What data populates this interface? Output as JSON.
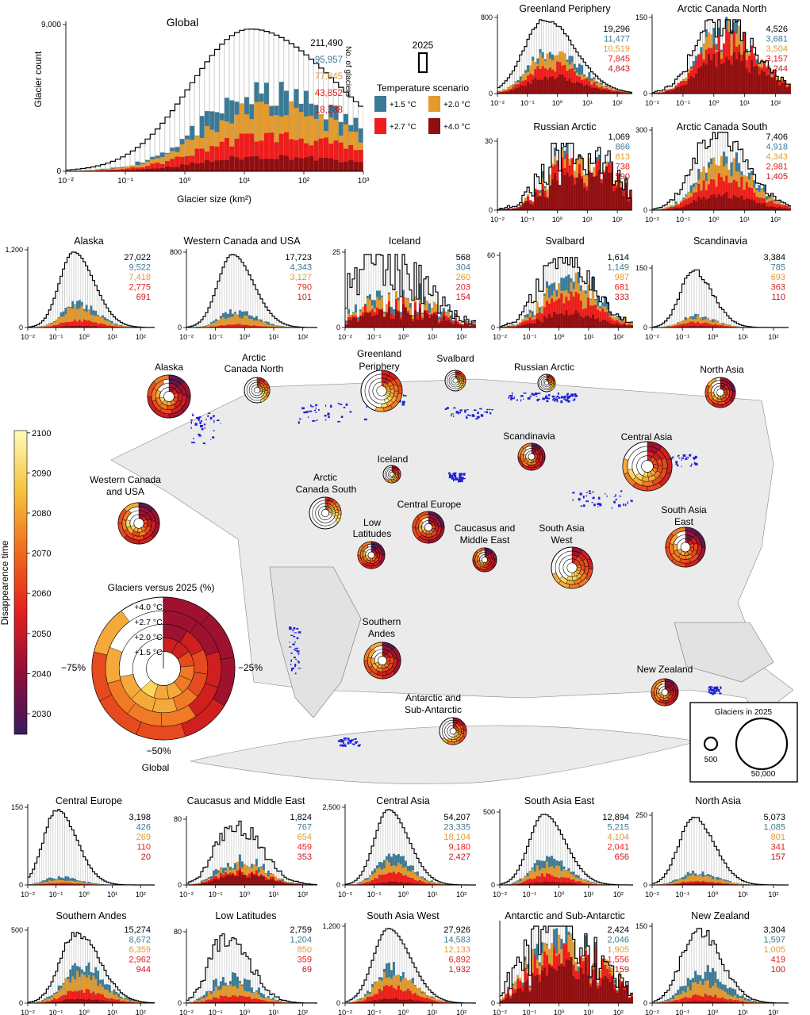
{
  "colors": {
    "total": "#000000",
    "s15": "#3b7a96",
    "s20": "#e39a2f",
    "s27": "#ee1c1c",
    "s40": "#8e0f12",
    "land": "#ebebeb",
    "glacier": "#1f1fd9"
  },
  "legend": {
    "year": "2025",
    "scenario_title": "Temperature scenario",
    "s15": "+1.5 °C",
    "s20": "+2.0 °C",
    "s27": "+2.7 °C",
    "s40": "+4.0 °C"
  },
  "colorbar": {
    "label": "Disappearence time",
    "ticks": [
      "2030",
      "2040",
      "2050",
      "2060",
      "2070",
      "2080",
      "2090",
      "2100"
    ]
  },
  "pie_legend": {
    "title": "Glaciers versus 2025 (%)",
    "rings": [
      "+4.0 °C",
      "+2.7 °C",
      "+2.0 °C",
      "+1.5 °C"
    ],
    "left": "−75%",
    "right": "−25%",
    "bottom": "−50%",
    "name": "Global"
  },
  "size_legend": {
    "title": "Glaciers in 2025",
    "small": "500",
    "large": "50,000"
  },
  "map_labels": [
    "Alaska",
    "Arctic",
    "Canada North",
    "Greenland",
    "Periphery",
    "Svalbard",
    "Russian Arctic",
    "North Asia",
    "Scandinavia",
    "Central Asia",
    "Iceland",
    "Arctic",
    "Canada South",
    "Western Canada",
    "and USA",
    "Central Europe",
    "Low",
    "Latitudes",
    "Caucasus and",
    "Middle East",
    "South Asia",
    "West",
    "South Asia",
    "East",
    "Southern",
    "Andes",
    "New Zealand",
    "Antarctic and",
    "Sub-Antarctic"
  ],
  "chart_data": [
    {
      "type": "bar",
      "title": "Global",
      "xlabel": "Glacier size (km²)",
      "ylabel": "Glacier count",
      "xscale": "log",
      "xlim": [
        "10⁻²",
        "10³"
      ],
      "x_ticks": [
        "10⁻²",
        "10⁻¹",
        "10⁰",
        "10¹",
        "10²",
        "10³"
      ],
      "y_ticks": [
        "0",
        "9,000"
      ],
      "count_label": "No. of glaciers",
      "counts": [
        "211,490",
        "95,957",
        "77,845",
        "43,852",
        "18,288"
      ]
    },
    {
      "type": "bar",
      "title": "Greenland Periphery",
      "xscale": "log",
      "x_ticks": [
        "10⁻²",
        "10⁻¹",
        "10⁰",
        "10¹",
        "10²"
      ],
      "y_ticks": [
        "0",
        "800"
      ],
      "counts": [
        "19,296",
        "11,477",
        "10,519",
        "7,845",
        "4,843"
      ]
    },
    {
      "type": "bar",
      "title": "Arctic Canada North",
      "xscale": "log",
      "x_ticks": [
        "10⁻²",
        "10⁻¹",
        "10⁰",
        "10¹",
        "10²"
      ],
      "y_ticks": [
        "0",
        "150"
      ],
      "counts": [
        "4,526",
        "3,681",
        "3,504",
        "3,157",
        "2,244"
      ]
    },
    {
      "type": "bar",
      "title": "Russian Arctic",
      "xscale": "log",
      "x_ticks": [
        "10⁻²",
        "10⁻¹",
        "10⁰",
        "10¹",
        "10²"
      ],
      "y_ticks": [
        "0",
        "30"
      ],
      "counts": [
        "1,069",
        "866",
        "813",
        "738",
        "590"
      ]
    },
    {
      "type": "bar",
      "title": "Arctic Canada South",
      "xscale": "log",
      "x_ticks": [
        "10⁻²",
        "10⁻¹",
        "10⁰",
        "10¹",
        "10²"
      ],
      "y_ticks": [
        "0",
        "300"
      ],
      "counts": [
        "7,406",
        "4,918",
        "4,343",
        "2,981",
        "1,405"
      ]
    },
    {
      "type": "bar",
      "title": "Alaska",
      "xscale": "log",
      "x_ticks": [
        "10⁻²",
        "10⁻¹",
        "10⁰",
        "10¹",
        "10²"
      ],
      "y_ticks": [
        "0",
        "1,200"
      ],
      "counts": [
        "27,022",
        "9,522",
        "7,418",
        "2,775",
        "691"
      ]
    },
    {
      "type": "bar",
      "title": "Western Canada and USA",
      "xscale": "log",
      "x_ticks": [
        "10⁻²",
        "10⁻¹",
        "10⁰",
        "10¹",
        "10²"
      ],
      "y_ticks": [
        "0",
        "800"
      ],
      "counts": [
        "17,723",
        "4,343",
        "3,127",
        "790",
        "101"
      ]
    },
    {
      "type": "bar",
      "title": "Iceland",
      "xscale": "log",
      "x_ticks": [
        "10⁻²",
        "10⁻¹",
        "10⁰",
        "10¹",
        "10²"
      ],
      "y_ticks": [
        "0",
        "25"
      ],
      "counts": [
        "568",
        "304",
        "260",
        "203",
        "154"
      ]
    },
    {
      "type": "bar",
      "title": "Svalbard",
      "xscale": "log",
      "x_ticks": [
        "10⁻²",
        "10⁻¹",
        "10⁰",
        "10¹",
        "10²"
      ],
      "y_ticks": [
        "0",
        "60"
      ],
      "counts": [
        "1,614",
        "1,149",
        "987",
        "681",
        "333"
      ]
    },
    {
      "type": "bar",
      "title": "Scandinavia",
      "xscale": "log",
      "x_ticks": [
        "10⁻²",
        "10⁻¹",
        "10⁰",
        "10¹",
        "10²"
      ],
      "y_ticks": [
        "0",
        "150"
      ],
      "counts": [
        "3,384",
        "785",
        "693",
        "363",
        "110"
      ]
    },
    {
      "type": "bar",
      "title": "Central Europe",
      "xscale": "log",
      "x_ticks": [
        "10⁻²",
        "10⁻¹",
        "10⁰",
        "10¹",
        "10²"
      ],
      "y_ticks": [
        "0",
        "150"
      ],
      "counts": [
        "3,198",
        "426",
        "269",
        "110",
        "20"
      ]
    },
    {
      "type": "bar",
      "title": "Caucasus and Middle East",
      "xscale": "log",
      "x_ticks": [
        "10⁻²",
        "10⁻¹",
        "10⁰",
        "10¹",
        "10²"
      ],
      "y_ticks": [
        "0",
        "80"
      ],
      "counts": [
        "1,824",
        "767",
        "654",
        "459",
        "353"
      ]
    },
    {
      "type": "bar",
      "title": "Central Asia",
      "xscale": "log",
      "x_ticks": [
        "10⁻²",
        "10⁻¹",
        "10⁰",
        "10¹",
        "10²"
      ],
      "y_ticks": [
        "0",
        "2,500"
      ],
      "counts": [
        "54,207",
        "23,335",
        "18,104",
        "9,180",
        "2,427"
      ]
    },
    {
      "type": "bar",
      "title": "South Asia East",
      "xscale": "log",
      "x_ticks": [
        "10⁻²",
        "10⁻¹",
        "10⁰",
        "10¹",
        "10²"
      ],
      "y_ticks": [
        "0",
        "500"
      ],
      "counts": [
        "12,894",
        "5,215",
        "4,104",
        "2,041",
        "656"
      ]
    },
    {
      "type": "bar",
      "title": "North Asia",
      "xscale": "log",
      "x_ticks": [
        "10⁻²",
        "10⁻¹",
        "10⁰",
        "10¹",
        "10²"
      ],
      "y_ticks": [
        "0",
        "250"
      ],
      "counts": [
        "5,073",
        "1,085",
        "801",
        "341",
        "157"
      ]
    },
    {
      "type": "bar",
      "title": "Southern Andes",
      "xscale": "log",
      "x_ticks": [
        "10⁻²",
        "10⁻¹",
        "10⁰",
        "10¹",
        "10²"
      ],
      "y_ticks": [
        "0",
        "500"
      ],
      "counts": [
        "15,274",
        "8,672",
        "6,359",
        "2,962",
        "944"
      ]
    },
    {
      "type": "bar",
      "title": "Low Latitudes",
      "xscale": "log",
      "x_ticks": [
        "10⁻²",
        "10⁻¹",
        "10⁰",
        "10¹",
        "10²"
      ],
      "y_ticks": [
        "0",
        "80"
      ],
      "counts": [
        "2,759",
        "1,204",
        "850",
        "359",
        "69"
      ]
    },
    {
      "type": "bar",
      "title": "South Asia West",
      "xscale": "log",
      "x_ticks": [
        "10⁻²",
        "10⁻¹",
        "10⁰",
        "10¹",
        "10²"
      ],
      "y_ticks": [
        "0",
        "1,200"
      ],
      "counts": [
        "27,926",
        "14,583",
        "12,133",
        "6,892",
        "1,932"
      ]
    },
    {
      "type": "bar",
      "title": "Antarctic and Sub-Antarctic",
      "xscale": "log",
      "x_ticks": [
        "10⁻²",
        "10⁻¹",
        "10⁰",
        "10¹",
        "10²"
      ],
      "y_ticks": [
        "0"
      ],
      "counts": [
        "2,424",
        "2,046",
        "1,905",
        "1,556",
        "1,159"
      ]
    },
    {
      "type": "bar",
      "title": "New Zealand",
      "xscale": "log",
      "x_ticks": [
        "10⁻²",
        "10⁻¹",
        "10⁰",
        "10¹",
        "10²"
      ],
      "y_ticks": [
        "0",
        "150"
      ],
      "counts": [
        "3,304",
        "1,597",
        "1,005",
        "419",
        "100"
      ]
    }
  ]
}
